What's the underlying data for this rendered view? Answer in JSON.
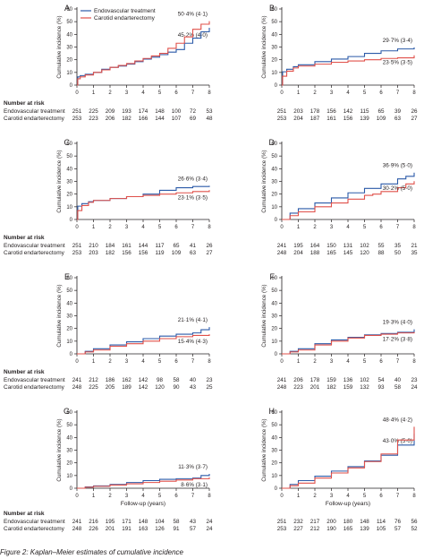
{
  "caption": "Figure 2: Kaplan–Meier estimates of cumulative incidence",
  "colors": {
    "endovascular": "#2b5aa8",
    "endarterectomy": "#e0504a",
    "axis": "#231f20"
  },
  "risk_header": "Number at risk",
  "y_axis_label": "Cumulative incidence (%)",
  "x_axis_label": "Follow-up (years)",
  "legend": {
    "placement": "top-left",
    "entries": [
      "Endovascular treatment",
      "Carotid endarterectomy"
    ]
  },
  "chart_data": [
    {
      "panel": "A",
      "type": "line",
      "xlim": [
        0,
        8
      ],
      "ylim": [
        0,
        60
      ],
      "x_ticks": [
        0,
        1,
        2,
        3,
        4,
        5,
        6,
        7,
        8
      ],
      "y_ticks": [
        0,
        10,
        20,
        30,
        40,
        50,
        60
      ],
      "series": [
        {
          "name": "Endovascular treatment",
          "annotation": "45·2% (4·0)",
          "x": [
            0,
            0.05,
            0.2,
            0.5,
            1,
            1.5,
            2,
            2.5,
            3,
            3.5,
            4,
            4.5,
            5,
            5.5,
            6,
            6.5,
            7,
            7.5,
            8
          ],
          "y": [
            0,
            6.5,
            7.5,
            8.5,
            10,
            12.5,
            14,
            15,
            16.5,
            18.5,
            20.5,
            22,
            24,
            26,
            28,
            33,
            37,
            42,
            45.2
          ],
          "risk": [
            251,
            225,
            209,
            193,
            174,
            148,
            100,
            72,
            53
          ]
        },
        {
          "name": "Carotid endarterectomy",
          "annotation": "50·4% (4·1)",
          "x": [
            0,
            0.05,
            0.2,
            0.5,
            1,
            1.5,
            2,
            2.5,
            3,
            3.5,
            4,
            4.5,
            5,
            5.5,
            6,
            6.5,
            7,
            7.5,
            8
          ],
          "y": [
            0,
            5,
            6.5,
            8,
            10,
            12,
            14,
            15.5,
            17,
            19,
            21,
            23,
            25,
            29,
            33,
            38,
            44,
            48,
            50.4
          ],
          "risk": [
            253,
            223,
            206,
            182,
            166,
            144,
            107,
            69,
            48
          ]
        }
      ]
    },
    {
      "panel": "B",
      "type": "line",
      "xlim": [
        0,
        8
      ],
      "ylim": [
        0,
        60
      ],
      "x_ticks": [
        0,
        1,
        2,
        3,
        4,
        5,
        6,
        7,
        8
      ],
      "y_ticks": [
        0,
        10,
        20,
        30,
        40,
        50,
        60
      ],
      "series": [
        {
          "name": "Endovascular treatment",
          "annotation": "29·7% (3·4)",
          "x": [
            0,
            0.05,
            0.3,
            0.7,
            1,
            2,
            3,
            4,
            5,
            6,
            7,
            8
          ],
          "y": [
            0,
            10.5,
            12.5,
            14.5,
            16,
            18.5,
            20.5,
            22.5,
            25,
            27,
            28.5,
            29.7
          ],
          "risk": [
            251,
            203,
            178,
            156,
            142,
            115,
            65,
            39,
            26
          ]
        },
        {
          "name": "Carotid endarterectomy",
          "annotation": "23·5% (3·5)",
          "x": [
            0,
            0.05,
            0.3,
            0.7,
            1,
            2,
            3,
            4,
            5,
            6,
            7,
            7.8,
            8
          ],
          "y": [
            0,
            7,
            11,
            13.5,
            15,
            16.5,
            18,
            19,
            20,
            21,
            21.5,
            21.5,
            23.5
          ],
          "risk": [
            253,
            204,
            187,
            161,
            156,
            139,
            109,
            63,
            27
          ]
        }
      ]
    },
    {
      "panel": "C",
      "type": "line",
      "xlim": [
        0,
        8
      ],
      "ylim": [
        0,
        60
      ],
      "x_ticks": [
        0,
        1,
        2,
        3,
        4,
        5,
        6,
        7,
        8
      ],
      "y_ticks": [
        0,
        10,
        20,
        30,
        40,
        50,
        60
      ],
      "series": [
        {
          "name": "Endovascular treatment",
          "annotation": "26·6% (3·4)",
          "x": [
            0,
            0.05,
            0.3,
            0.7,
            1,
            2,
            3,
            4,
            5,
            6,
            7,
            8
          ],
          "y": [
            0,
            10.5,
            12.5,
            14,
            15,
            16.5,
            18,
            20,
            23,
            25,
            26,
            26.6
          ],
          "risk": [
            251,
            210,
            184,
            161,
            144,
            117,
            65,
            41,
            26
          ]
        },
        {
          "name": "Carotid endarterectomy",
          "annotation": "23·1% (3·5)",
          "x": [
            0,
            0.05,
            0.3,
            0.7,
            1,
            2,
            3,
            4,
            5,
            6,
            7,
            8
          ],
          "y": [
            0,
            7,
            11,
            13.5,
            15,
            16.5,
            18,
            19,
            20,
            21,
            22,
            23.1
          ],
          "risk": [
            253,
            203,
            182,
            156,
            156,
            119,
            109,
            63,
            27
          ]
        }
      ]
    },
    {
      "panel": "D",
      "type": "line",
      "xlim": [
        0,
        8
      ],
      "ylim": [
        0,
        60
      ],
      "x_ticks": [
        0,
        1,
        2,
        3,
        4,
        5,
        6,
        7,
        8
      ],
      "y_ticks": [
        0,
        10,
        20,
        30,
        40,
        50,
        60
      ],
      "series": [
        {
          "name": "Endovascular treatment",
          "annotation": "36·9% (5·0)",
          "x": [
            0,
            0.5,
            1,
            2,
            3,
            4,
            5,
            6,
            7,
            7.5,
            8
          ],
          "y": [
            0,
            5,
            8.5,
            13,
            17,
            21,
            24.5,
            28,
            32,
            34,
            36.9
          ],
          "risk": [
            241,
            195,
            164,
            150,
            131,
            102,
            55,
            35,
            21
          ]
        },
        {
          "name": "Carotid endarterectomy",
          "annotation": "30·2% (5·0)",
          "x": [
            0,
            0.5,
            1,
            2,
            3,
            4,
            5,
            5.5,
            6,
            7,
            7.5,
            8
          ],
          "y": [
            0,
            3,
            6,
            10,
            13,
            16,
            19,
            20,
            22,
            25,
            28,
            30.2
          ],
          "risk": [
            248,
            204,
            188,
            165,
            145,
            120,
            88,
            50,
            35
          ]
        }
      ]
    },
    {
      "panel": "E",
      "type": "line",
      "xlim": [
        0,
        8
      ],
      "ylim": [
        0,
        60
      ],
      "x_ticks": [
        0,
        1,
        2,
        3,
        4,
        5,
        6,
        7,
        8
      ],
      "y_ticks": [
        0,
        10,
        20,
        30,
        40,
        50,
        60
      ],
      "series": [
        {
          "name": "Endovascular treatment",
          "annotation": "21·1% (4·1)",
          "x": [
            0,
            0.5,
            1,
            2,
            3,
            4,
            5,
            6,
            7,
            7.5,
            8
          ],
          "y": [
            0,
            2,
            4,
            7,
            9.5,
            12,
            14,
            15.5,
            16.5,
            19,
            21.1
          ],
          "risk": [
            241,
            212,
            186,
            162,
            142,
            98,
            58,
            40,
            23
          ]
        },
        {
          "name": "Carotid endarterectomy",
          "annotation": "15·4% (4·3)",
          "x": [
            0,
            0.5,
            1,
            2,
            3,
            4,
            5,
            6,
            7,
            8
          ],
          "y": [
            0,
            1.5,
            3,
            6,
            8,
            10,
            12,
            13.5,
            14.5,
            15.4
          ],
          "risk": [
            248,
            225,
            205,
            189,
            142,
            120,
            90,
            43,
            25
          ]
        }
      ]
    },
    {
      "panel": "F",
      "type": "line",
      "xlim": [
        0,
        8
      ],
      "ylim": [
        0,
        60
      ],
      "x_ticks": [
        0,
        1,
        2,
        3,
        4,
        5,
        6,
        7,
        8
      ],
      "y_ticks": [
        0,
        10,
        20,
        30,
        40,
        50,
        60
      ],
      "series": [
        {
          "name": "Endovascular treatment",
          "annotation": "19·3% (4·0)",
          "x": [
            0,
            0.5,
            1,
            2,
            3,
            4,
            5,
            6,
            7,
            8
          ],
          "y": [
            0,
            2,
            4,
            8,
            11,
            13,
            15,
            16,
            17,
            19.3
          ],
          "risk": [
            241,
            206,
            178,
            159,
            136,
            102,
            54,
            40,
            23
          ]
        },
        {
          "name": "Carotid endarterectomy",
          "annotation": "17·2% (3·8)",
          "x": [
            0,
            0.5,
            1,
            2,
            3,
            4,
            5,
            6,
            7,
            8
          ],
          "y": [
            0,
            1.5,
            3,
            7,
            10,
            12.5,
            14.5,
            15.5,
            16.5,
            17.2
          ],
          "risk": [
            248,
            223,
            201,
            182,
            159,
            132,
            93,
            58,
            24
          ]
        }
      ]
    },
    {
      "panel": "G",
      "type": "line",
      "xlim": [
        0,
        8
      ],
      "ylim": [
        0,
        60
      ],
      "x_ticks": [
        0,
        1,
        2,
        3,
        4,
        5,
        6,
        7,
        8
      ],
      "y_ticks": [
        0,
        10,
        20,
        30,
        40,
        50,
        60
      ],
      "series": [
        {
          "name": "Endovascular treatment",
          "annotation": "11·3% (3·7)",
          "x": [
            0,
            0.5,
            1,
            2,
            3,
            4,
            5,
            6,
            7,
            7.5,
            8
          ],
          "y": [
            0,
            1,
            1.8,
            3,
            4.5,
            6,
            7,
            7.5,
            8,
            10,
            11.3
          ],
          "risk": [
            241,
            216,
            195,
            171,
            148,
            104,
            58,
            43,
            24
          ]
        },
        {
          "name": "Carotid endarterectomy",
          "annotation": "8·6% (3·1)",
          "x": [
            0,
            0.5,
            1,
            2,
            3,
            4,
            5,
            6,
            7,
            8
          ],
          "y": [
            0,
            0.8,
            1.5,
            2.5,
            3.5,
            4.5,
            5.5,
            6.5,
            7.5,
            8.6
          ],
          "risk": [
            248,
            226,
            201,
            191,
            163,
            126,
            91,
            57,
            24
          ]
        }
      ]
    },
    {
      "panel": "H",
      "type": "line",
      "xlim": [
        0,
        8
      ],
      "ylim": [
        0,
        60
      ],
      "x_ticks": [
        0,
        1,
        2,
        3,
        4,
        5,
        6,
        7,
        8
      ],
      "y_ticks": [
        0,
        10,
        20,
        30,
        40,
        50,
        60
      ],
      "series": [
        {
          "name": "Endovascular treatment",
          "annotation": "43·0% (5·0)",
          "x": [
            0,
            0.5,
            1,
            2,
            3,
            4,
            5,
            6,
            7,
            8
          ],
          "y": [
            0,
            3,
            6,
            9.5,
            13.5,
            17,
            21.5,
            26,
            34,
            43
          ],
          "risk": [
            251,
            232,
            217,
            200,
            180,
            148,
            114,
            76,
            56
          ]
        },
        {
          "name": "Carotid endarterectomy",
          "annotation": "48·4% (4·2)",
          "x": [
            0,
            0.5,
            1,
            2,
            3,
            4,
            5,
            6,
            7,
            8
          ],
          "y": [
            0,
            2,
            4,
            8,
            12,
            16,
            21,
            27,
            38,
            48.4
          ],
          "risk": [
            253,
            227,
            212,
            190,
            165,
            139,
            105,
            57,
            52
          ]
        }
      ]
    }
  ]
}
